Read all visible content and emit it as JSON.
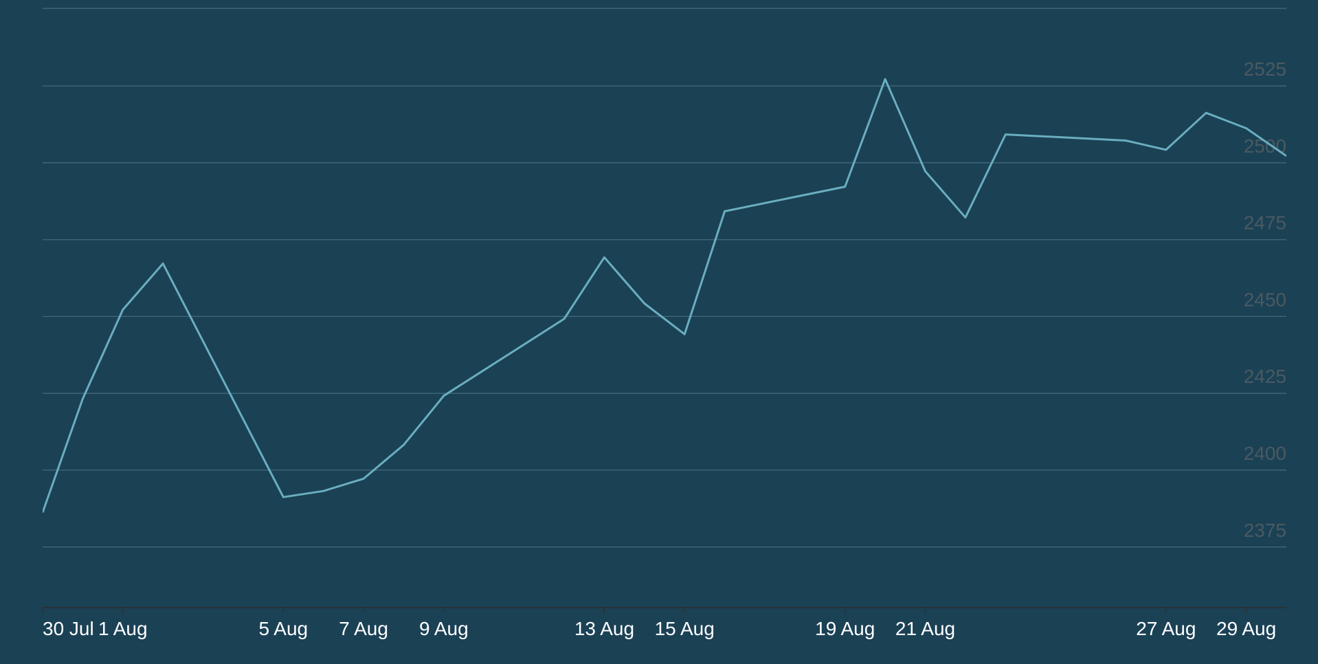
{
  "chart_data": {
    "type": "line",
    "title": "",
    "xlabel": "",
    "ylabel": "",
    "colors": {
      "background": "#1b4155",
      "line": "#6aaec0",
      "grid": "#3d6577",
      "y_tick_label": "#4a5a60",
      "x_tick_label": "#ffffff"
    },
    "grid": true,
    "y_axis_position": "right",
    "ylim": [
      2350,
      2550
    ],
    "xlim": [
      "2024-07-30",
      "2024-08-30"
    ],
    "y_ticks": [
      2375,
      2400,
      2425,
      2450,
      2475,
      2500,
      2525
    ],
    "y_tick_labels": [
      "2375",
      "2400",
      "2425",
      "2450",
      "2475",
      "2500",
      "2525"
    ],
    "x_ticks": [
      "2024-07-30",
      "2024-08-01",
      "2024-08-05",
      "2024-08-07",
      "2024-08-09",
      "2024-08-13",
      "2024-08-15",
      "2024-08-19",
      "2024-08-21",
      "2024-08-27",
      "2024-08-29"
    ],
    "x_tick_labels": [
      "30 Jul",
      "1 Aug",
      "5 Aug",
      "7 Aug",
      "9 Aug",
      "13 Aug",
      "15 Aug",
      "19 Aug",
      "21 Aug",
      "27 Aug",
      "29 Aug"
    ],
    "series": [
      {
        "x": [
          "2024-07-30",
          "2024-07-31",
          "2024-08-01",
          "2024-08-02",
          "2024-08-05",
          "2024-08-06",
          "2024-08-07",
          "2024-08-08",
          "2024-08-09",
          "2024-08-12",
          "2024-08-13",
          "2024-08-14",
          "2024-08-15",
          "2024-08-16",
          "2024-08-19",
          "2024-08-20",
          "2024-08-21",
          "2024-08-22",
          "2024-08-23",
          "2024-08-26",
          "2024-08-27",
          "2024-08-28",
          "2024-08-29",
          "2024-08-30"
        ],
        "values": [
          2386,
          2423,
          2452,
          2467,
          2391,
          2393,
          2397,
          2408,
          2424,
          2449,
          2469,
          2454,
          2444,
          2484,
          2492,
          2527,
          2497,
          2482,
          2509,
          2507,
          2504,
          2516,
          2511,
          2502
        ]
      }
    ]
  }
}
